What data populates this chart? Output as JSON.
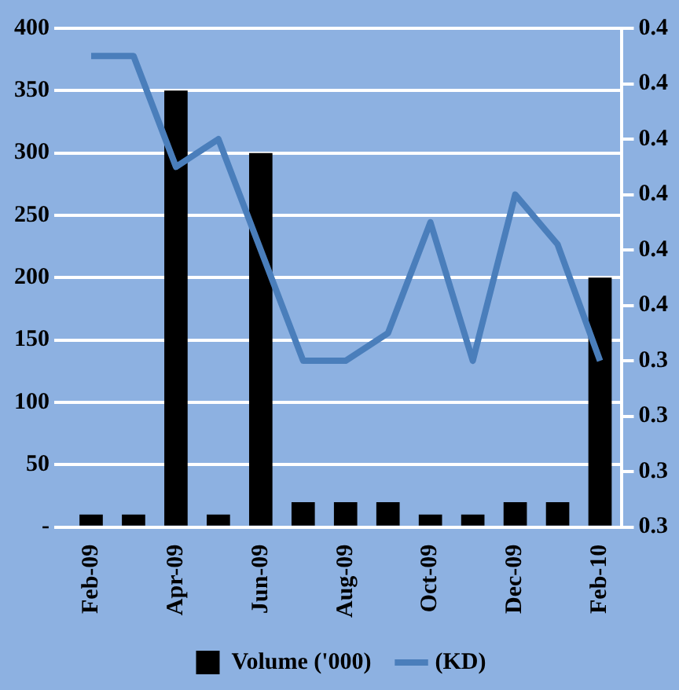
{
  "chart_data": {
    "type": "bar",
    "categories": [
      "Feb-09",
      null,
      "Apr-09",
      null,
      "Jun-09",
      null,
      "Aug-09",
      null,
      "Oct-09",
      null,
      "Dec-09",
      null,
      "Feb-10"
    ],
    "series": [
      {
        "name": "Volume ('000)",
        "color": "#000000",
        "values": [
          10,
          10,
          350,
          10,
          300,
          20,
          20,
          20,
          10,
          10,
          20,
          20,
          200
        ]
      },
      {
        "name": "(KD)",
        "type": "line",
        "axis": "y2",
        "color": "#4a7ebb",
        "values": [
          0.395,
          0.395,
          0.375,
          0.38,
          0.36,
          0.34,
          0.34,
          0.345,
          0.365,
          0.34,
          0.37,
          0.361,
          0.34
        ]
      }
    ],
    "ylim": [
      0,
      400
    ],
    "yticks": [
      {
        "value": 0,
        "label": "-"
      },
      50,
      100,
      150,
      200,
      250,
      300,
      350,
      400
    ],
    "y2lim": [
      0.31,
      0.4
    ],
    "y2ticks": [
      {
        "value": 0.31,
        "label": "0.3"
      },
      {
        "value": 0.32,
        "label": "0.3"
      },
      {
        "value": 0.33,
        "label": "0.3"
      },
      {
        "value": 0.34,
        "label": "0.3"
      },
      {
        "value": 0.35,
        "label": "0.4"
      },
      {
        "value": 0.36,
        "label": "0.4"
      },
      {
        "value": 0.37,
        "label": "0.4"
      },
      {
        "value": 0.38,
        "label": "0.4"
      },
      {
        "value": 0.39,
        "label": "0.4"
      },
      {
        "value": 0.4,
        "label": "0.4"
      }
    ],
    "grid": "y",
    "legend": "bottom"
  }
}
